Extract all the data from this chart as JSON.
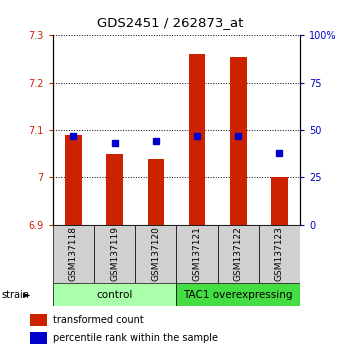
{
  "title": "GDS2451 / 262873_at",
  "samples": [
    "GSM137118",
    "GSM137119",
    "GSM137120",
    "GSM137121",
    "GSM137122",
    "GSM137123"
  ],
  "transformed_counts": [
    7.09,
    7.05,
    7.04,
    7.26,
    7.255,
    7.0
  ],
  "percentile_ranks": [
    47,
    43,
    44,
    47,
    47,
    38
  ],
  "ylim_left": [
    6.9,
    7.3
  ],
  "ylim_right": [
    0,
    100
  ],
  "yticks_left": [
    6.9,
    7.0,
    7.1,
    7.2,
    7.3
  ],
  "yticks_right": [
    0,
    25,
    50,
    75,
    100
  ],
  "bar_color": "#cc2200",
  "dot_color": "#0000cc",
  "groups": [
    {
      "label": "control",
      "indices": [
        0,
        1,
        2
      ],
      "color": "#aaffaa"
    },
    {
      "label": "TAC1 overexpressing",
      "indices": [
        3,
        4,
        5
      ],
      "color": "#44dd44"
    }
  ],
  "group_label": "strain",
  "legend_items": [
    {
      "color": "#cc2200",
      "label": "transformed count"
    },
    {
      "color": "#0000cc",
      "label": "percentile rank within the sample"
    }
  ],
  "bar_bottom": 6.9,
  "tick_label_fontsize": 7,
  "title_fontsize": 9.5,
  "group_fontsize": 7.5,
  "sample_fontsize": 6.5,
  "legend_fontsize": 7,
  "bar_width": 0.4
}
